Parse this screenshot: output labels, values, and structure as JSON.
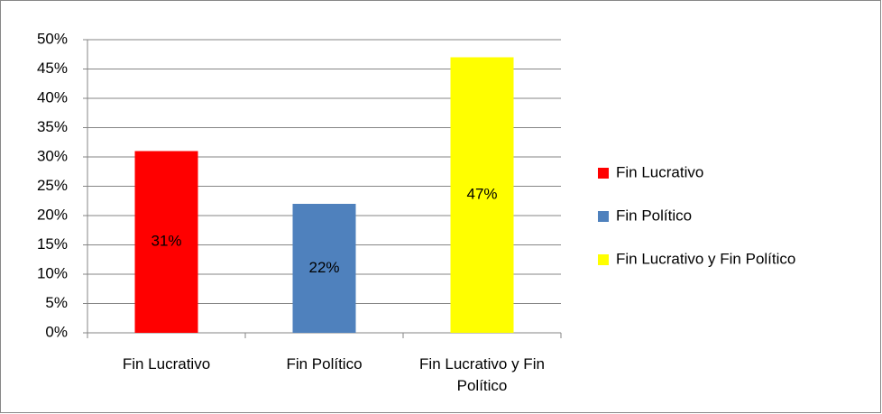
{
  "chart_data": {
    "type": "bar",
    "categories": [
      "Fin Lucrativo",
      "Fin Político",
      "Fin Lucrativo y Fin Político"
    ],
    "values": [
      31,
      22,
      47
    ],
    "value_labels": [
      "31%",
      "22%",
      "47%"
    ],
    "colors": [
      "#ff0000",
      "#4f81bd",
      "#ffff00"
    ],
    "ylim": [
      0,
      50
    ],
    "yticks": [
      {
        "value": 0,
        "label": "0%"
      },
      {
        "value": 5,
        "label": "5%"
      },
      {
        "value": 10,
        "label": "10%"
      },
      {
        "value": 15,
        "label": "15%"
      },
      {
        "value": 20,
        "label": "20%"
      },
      {
        "value": 25,
        "label": "25%"
      },
      {
        "value": 30,
        "label": "30%"
      },
      {
        "value": 35,
        "label": "35%"
      },
      {
        "value": 40,
        "label": "40%"
      },
      {
        "value": 45,
        "label": "45%"
      },
      {
        "value": 50,
        "label": "50%"
      }
    ],
    "grid": true,
    "legend": "right"
  }
}
